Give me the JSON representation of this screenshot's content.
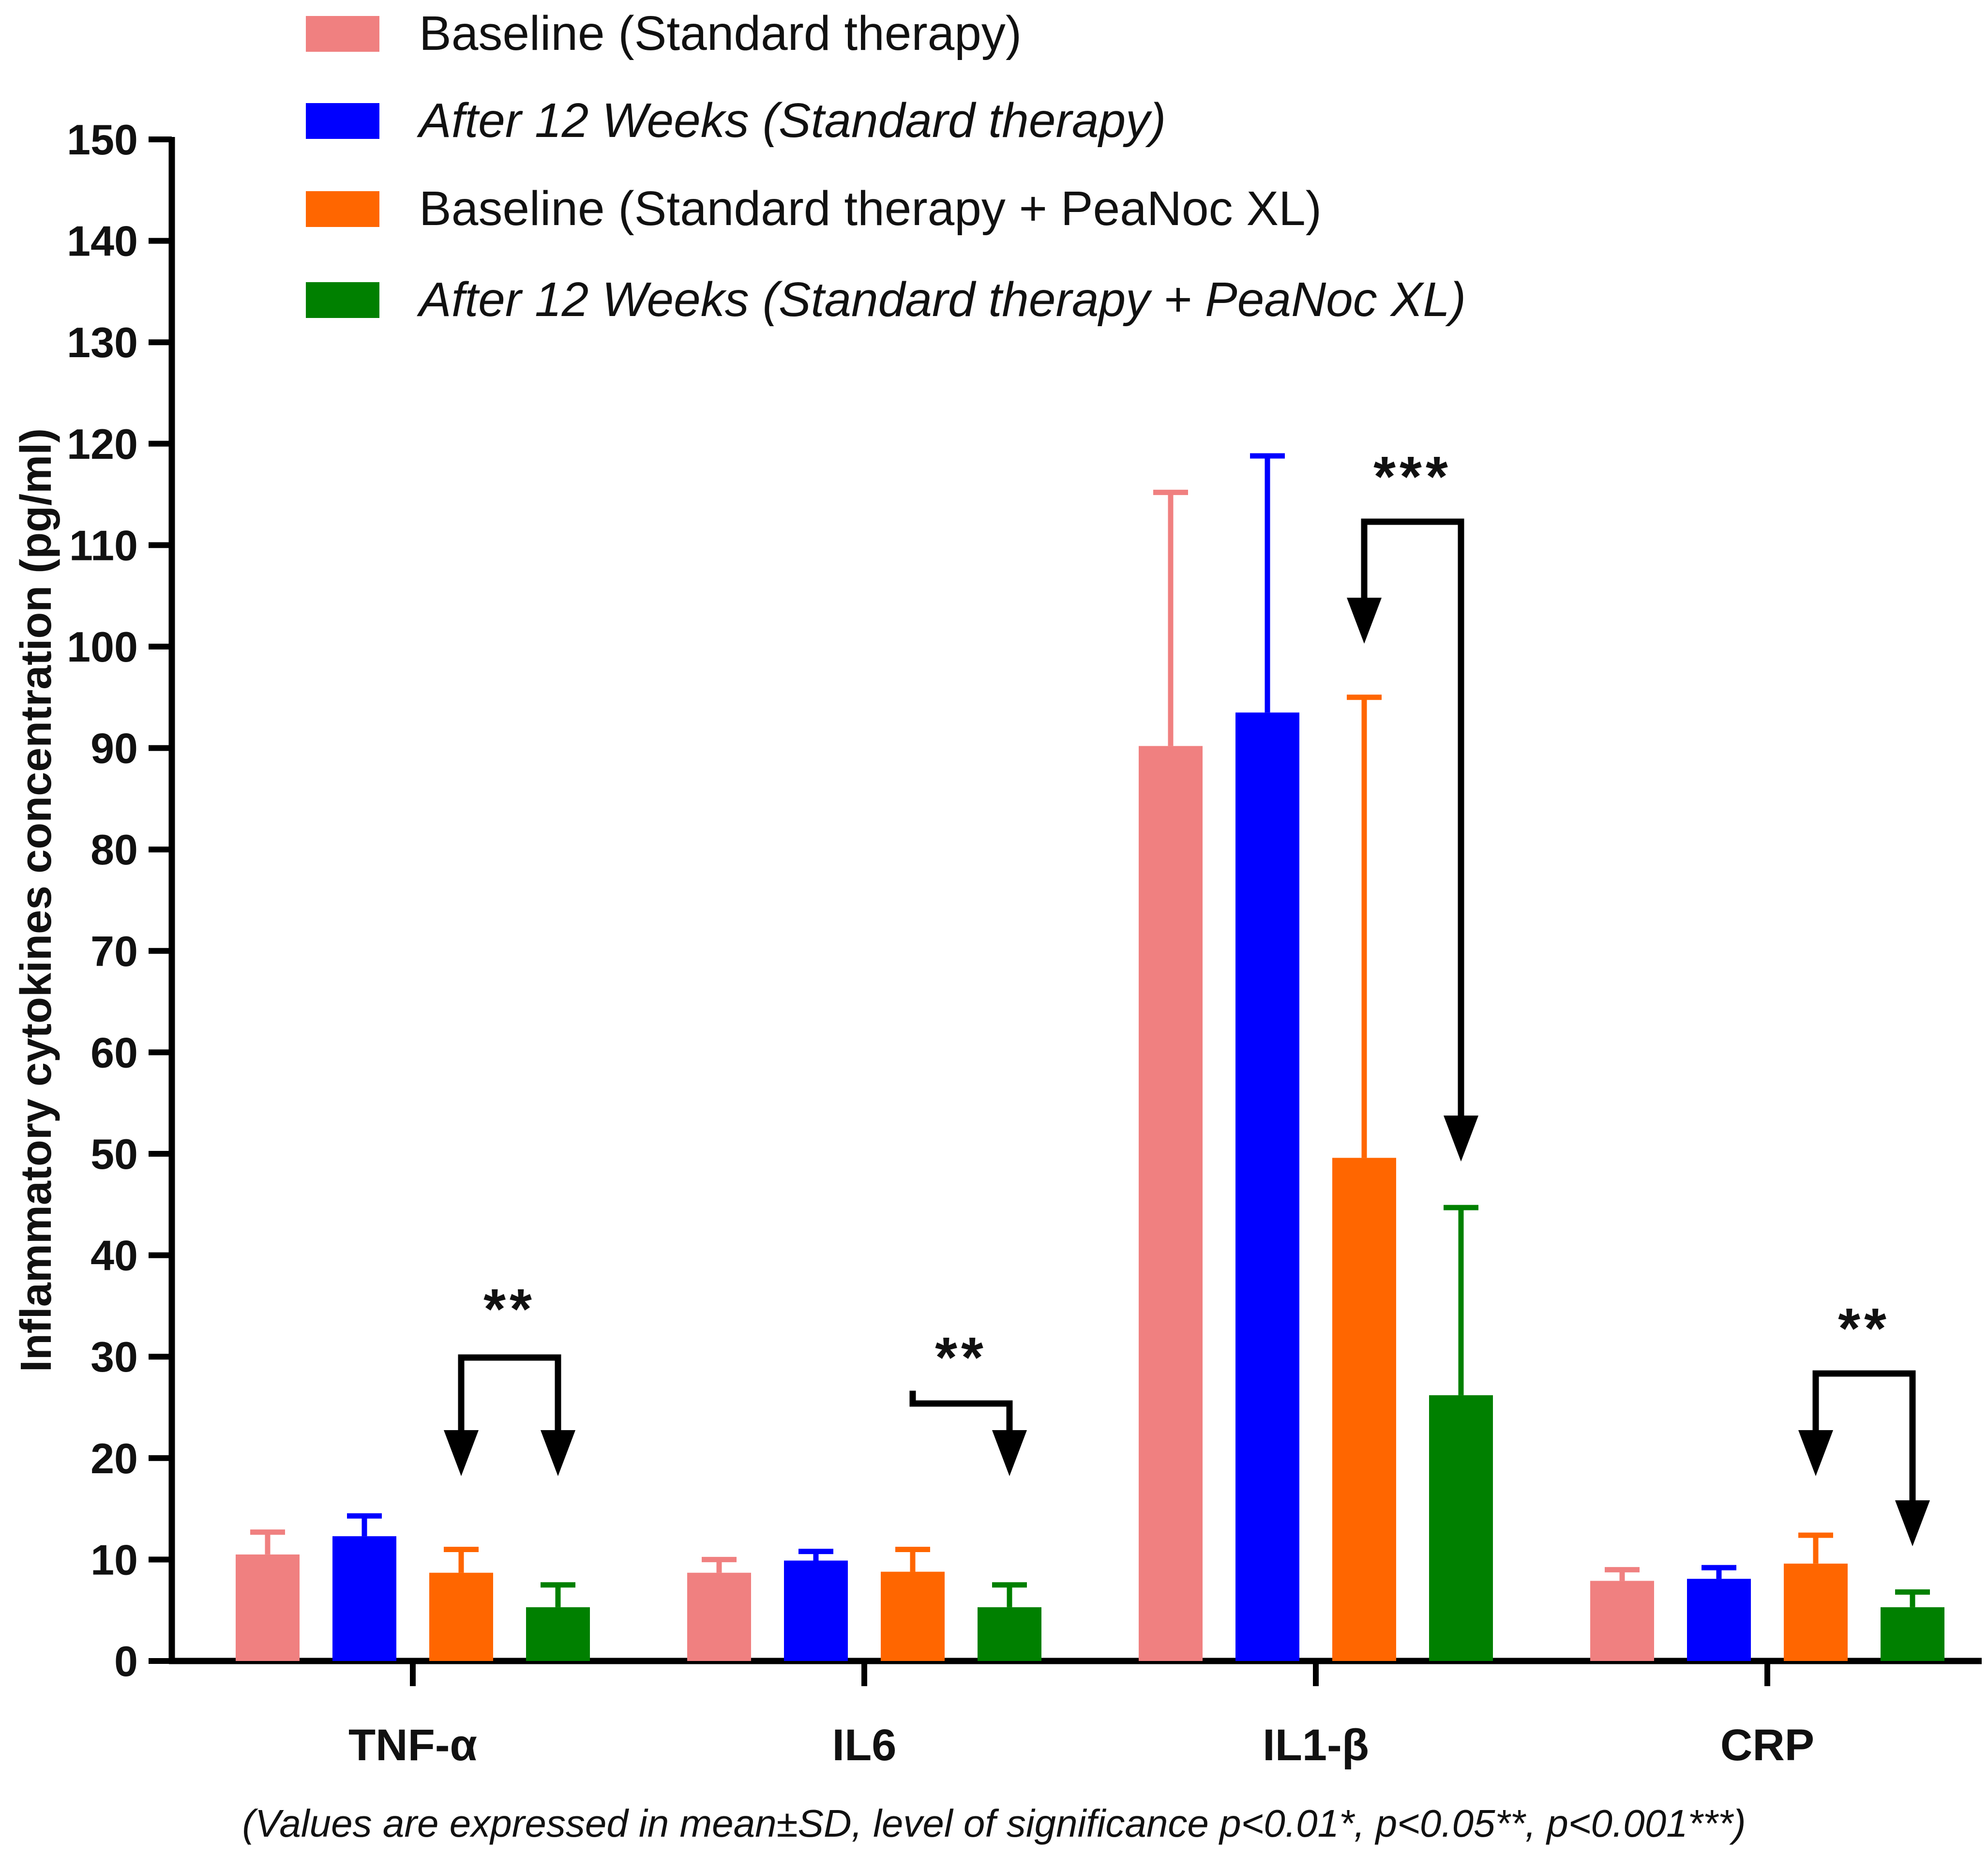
{
  "chart_data": {
    "type": "bar",
    "title": "",
    "xlabel": "",
    "ylabel": "Inflammatory cytokines concentration (pg/ml)",
    "ylim": [
      0,
      150
    ],
    "yticks": [
      0,
      10,
      20,
      30,
      40,
      50,
      60,
      70,
      80,
      90,
      100,
      110,
      120,
      130,
      140,
      150
    ],
    "categories": [
      "TNF-α",
      "IL6",
      "IL1-β",
      "CRP"
    ],
    "series": [
      {
        "name": "Baseline (Standard therapy)",
        "color": "#f08080",
        "italic": false,
        "values": [
          10.5,
          8.7,
          90.2,
          7.9
        ],
        "errors": [
          2.2,
          1.3,
          25.0,
          1.1
        ]
      },
      {
        "name": "After 12 Weeks (Standard therapy)",
        "color": "#0000ff",
        "italic": true,
        "values": [
          12.3,
          9.9,
          93.5,
          8.1
        ],
        "errors": [
          2.0,
          0.9,
          25.3,
          1.1
        ]
      },
      {
        "name": "Baseline (Standard therapy + PeaNoc XL)",
        "color": "#ff6600",
        "italic": false,
        "values": [
          8.7,
          8.8,
          49.6,
          9.6
        ],
        "errors": [
          2.3,
          2.2,
          45.4,
          2.8
        ]
      },
      {
        "name": "After 12 Weeks (Standard therapy + PeaNoc XL)",
        "color": "#008000",
        "italic": true,
        "values": [
          5.3,
          5.3,
          26.2,
          5.3
        ],
        "errors": [
          2.2,
          2.2,
          18.5,
          1.5
        ]
      }
    ],
    "significance": [
      {
        "category": "TNF-α",
        "label": "**"
      },
      {
        "category": "IL6",
        "label": "**"
      },
      {
        "category": "IL1-β",
        "label": "***"
      },
      {
        "category": "CRP",
        "label": "**"
      }
    ],
    "legend_position": "top",
    "grid": false
  },
  "footnote": "(Values are expressed in mean±SD, level of significance p<0.01*, p<0.05**, p<0.001***)"
}
